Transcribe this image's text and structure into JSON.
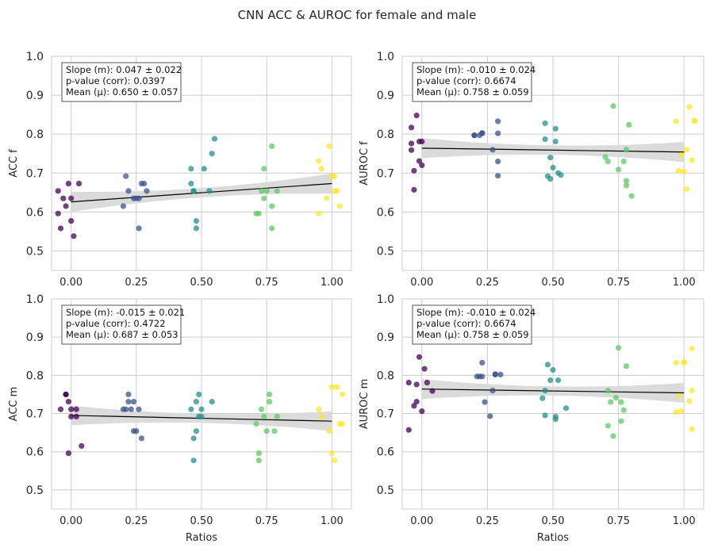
{
  "figure": {
    "title": "CNN ACC & AUROC for female and male"
  },
  "chart_data": [
    {
      "type": "scatter",
      "ylabel": "ACC f",
      "xlabel": "",
      "xlim": [
        -0.075,
        1.075
      ],
      "ylim": [
        0.45,
        1.0
      ],
      "xticks": [
        "0.00",
        "0.25",
        "0.50",
        "0.75",
        "1.00"
      ],
      "yticks": [
        "0.5",
        "0.6",
        "0.7",
        "0.8",
        "0.9",
        "1.0"
      ],
      "grid": true,
      "stats": [
        "Slope (m): 0.047 ± 0.022",
        "p-value (corr): 0.0397",
        "Mean (μ): 0.650 ± 0.057"
      ],
      "regression": {
        "intercept": 0.626,
        "slope": 0.047
      },
      "groups": [
        {
          "ratio": 0.0,
          "color": "#440154",
          "points": [
            [
              -0.05,
              0.654
            ],
            [
              -0.03,
              0.635
            ],
            [
              -0.02,
              0.615
            ],
            [
              -0.01,
              0.673
            ],
            [
              0.0,
              0.577
            ],
            [
              0.01,
              0.538
            ],
            [
              0.03,
              0.673
            ],
            [
              -0.04,
              0.558
            ],
            [
              -0.05,
              0.596
            ],
            [
              0.0,
              0.635
            ]
          ]
        },
        {
          "ratio": 0.25,
          "color": "#3b528b",
          "points": [
            [
              0.2,
              0.615
            ],
            [
              0.21,
              0.692
            ],
            [
              0.22,
              0.654
            ],
            [
              0.24,
              0.635
            ],
            [
              0.25,
              0.635
            ],
            [
              0.26,
              0.558
            ],
            [
              0.27,
              0.673
            ],
            [
              0.28,
              0.673
            ],
            [
              0.29,
              0.654
            ],
            [
              0.26,
              0.635
            ]
          ]
        },
        {
          "ratio": 0.5,
          "color": "#21918c",
          "points": [
            [
              0.46,
              0.711
            ],
            [
              0.46,
              0.673
            ],
            [
              0.47,
              0.654
            ],
            [
              0.48,
              0.577
            ],
            [
              0.48,
              0.558
            ],
            [
              0.47,
              0.654
            ],
            [
              0.51,
              0.711
            ],
            [
              0.53,
              0.654
            ],
            [
              0.54,
              0.75
            ],
            [
              0.55,
              0.788
            ]
          ]
        },
        {
          "ratio": 0.75,
          "color": "#5ec962",
          "points": [
            [
              0.71,
              0.596
            ],
            [
              0.72,
              0.596
            ],
            [
              0.73,
              0.654
            ],
            [
              0.74,
              0.711
            ],
            [
              0.74,
              0.635
            ],
            [
              0.75,
              0.654
            ],
            [
              0.77,
              0.615
            ],
            [
              0.77,
              0.558
            ],
            [
              0.77,
              0.769
            ],
            [
              0.79,
              0.654
            ]
          ]
        },
        {
          "ratio": 1.0,
          "color": "#fde725",
          "points": [
            [
              0.95,
              0.596
            ],
            [
              0.95,
              0.731
            ],
            [
              0.96,
              0.711
            ],
            [
              0.98,
              0.635
            ],
            [
              0.99,
              0.769
            ],
            [
              1.0,
              0.692
            ],
            [
              1.01,
              0.654
            ],
            [
              1.01,
              0.692
            ],
            [
              1.02,
              0.654
            ],
            [
              1.03,
              0.615
            ]
          ]
        }
      ]
    },
    {
      "type": "scatter",
      "ylabel": "AUROC f",
      "xlabel": "",
      "xlim": [
        -0.075,
        1.075
      ],
      "ylim": [
        0.45,
        1.0
      ],
      "xticks": [
        "0.00",
        "0.25",
        "0.50",
        "0.75",
        "1.00"
      ],
      "yticks": [
        "0.5",
        "0.6",
        "0.7",
        "0.8",
        "0.9",
        "1.0"
      ],
      "grid": true,
      "stats": [
        "Slope (m): -0.010 ± 0.024",
        "p-value (corr): 0.6674",
        "Mean (μ): 0.758 ± 0.059"
      ],
      "regression": {
        "intercept": 0.764,
        "slope": -0.01
      },
      "groups": [
        {
          "ratio": 0.0,
          "color": "#440154",
          "points": [
            [
              -0.04,
              0.817
            ],
            [
              -0.04,
              0.776
            ],
            [
              -0.04,
              0.759
            ],
            [
              -0.03,
              0.657
            ],
            [
              -0.03,
              0.706
            ],
            [
              -0.02,
              0.848
            ],
            [
              -0.01,
              0.781
            ],
            [
              -0.01,
              0.731
            ],
            [
              0.0,
              0.781
            ],
            [
              0.0,
              0.72
            ]
          ]
        },
        {
          "ratio": 0.25,
          "color": "#3b528b",
          "points": [
            [
              0.2,
              0.797
            ],
            [
              0.2,
              0.797
            ],
            [
              0.22,
              0.797
            ],
            [
              0.23,
              0.802
            ],
            [
              0.23,
              0.803
            ],
            [
              0.27,
              0.76
            ],
            [
              0.29,
              0.833
            ],
            [
              0.29,
              0.802
            ],
            [
              0.29,
              0.73
            ],
            [
              0.29,
              0.693
            ]
          ]
        },
        {
          "ratio": 0.5,
          "color": "#21918c",
          "points": [
            [
              0.47,
              0.828
            ],
            [
              0.47,
              0.787
            ],
            [
              0.48,
              0.692
            ],
            [
              0.49,
              0.74
            ],
            [
              0.49,
              0.685
            ],
            [
              0.5,
              0.714
            ],
            [
              0.51,
              0.781
            ],
            [
              0.51,
              0.814
            ],
            [
              0.52,
              0.7
            ],
            [
              0.53,
              0.695
            ]
          ]
        },
        {
          "ratio": 0.75,
          "color": "#5ec962",
          "points": [
            [
              0.7,
              0.741
            ],
            [
              0.71,
              0.73
            ],
            [
              0.73,
              0.872
            ],
            [
              0.75,
              0.709
            ],
            [
              0.77,
              0.73
            ],
            [
              0.78,
              0.68
            ],
            [
              0.78,
              0.668
            ],
            [
              0.78,
              0.76
            ],
            [
              0.79,
              0.824
            ],
            [
              0.8,
              0.641
            ]
          ]
        },
        {
          "ratio": 1.0,
          "color": "#fde725",
          "points": [
            [
              0.97,
              0.833
            ],
            [
              0.98,
              0.706
            ],
            [
              0.99,
              0.746
            ],
            [
              1.0,
              0.704
            ],
            [
              1.01,
              0.76
            ],
            [
              1.01,
              0.659
            ],
            [
              1.02,
              0.87
            ],
            [
              1.03,
              0.733
            ],
            [
              1.04,
              0.833
            ],
            [
              1.04,
              0.835
            ]
          ]
        }
      ]
    },
    {
      "type": "scatter",
      "ylabel": "ACC m",
      "xlabel": "Ratios",
      "xlim": [
        -0.075,
        1.075
      ],
      "ylim": [
        0.45,
        1.0
      ],
      "xticks": [
        "0.00",
        "0.25",
        "0.50",
        "0.75",
        "1.00"
      ],
      "yticks": [
        "0.5",
        "0.6",
        "0.7",
        "0.8",
        "0.9",
        "1.0"
      ],
      "grid": true,
      "stats": [
        "Slope (m): -0.015 ± 0.021",
        "p-value (corr): 0.4722",
        "Mean (μ): 0.687 ± 0.053"
      ],
      "regression": {
        "intercept": 0.695,
        "slope": -0.015
      },
      "groups": [
        {
          "ratio": 0.0,
          "color": "#440154",
          "points": [
            [
              -0.04,
              0.711
            ],
            [
              -0.02,
              0.75
            ],
            [
              -0.02,
              0.75
            ],
            [
              -0.01,
              0.731
            ],
            [
              -0.01,
              0.596
            ],
            [
              0.0,
              0.711
            ],
            [
              0.0,
              0.692
            ],
            [
              0.02,
              0.711
            ],
            [
              0.02,
              0.692
            ],
            [
              0.04,
              0.615
            ]
          ]
        },
        {
          "ratio": 0.25,
          "color": "#3b528b",
          "points": [
            [
              0.2,
              0.711
            ],
            [
              0.21,
              0.711
            ],
            [
              0.22,
              0.75
            ],
            [
              0.22,
              0.731
            ],
            [
              0.23,
              0.711
            ],
            [
              0.24,
              0.654
            ],
            [
              0.24,
              0.731
            ],
            [
              0.25,
              0.654
            ],
            [
              0.26,
              0.711
            ],
            [
              0.27,
              0.635
            ]
          ]
        },
        {
          "ratio": 0.5,
          "color": "#21918c",
          "points": [
            [
              0.46,
              0.711
            ],
            [
              0.47,
              0.577
            ],
            [
              0.47,
              0.635
            ],
            [
              0.48,
              0.654
            ],
            [
              0.48,
              0.731
            ],
            [
              0.49,
              0.75
            ],
            [
              0.49,
              0.692
            ],
            [
              0.5,
              0.692
            ],
            [
              0.5,
              0.711
            ],
            [
              0.54,
              0.731
            ]
          ]
        },
        {
          "ratio": 0.75,
          "color": "#5ec962",
          "points": [
            [
              0.71,
              0.673
            ],
            [
              0.72,
              0.577
            ],
            [
              0.72,
              0.596
            ],
            [
              0.73,
              0.711
            ],
            [
              0.74,
              0.692
            ],
            [
              0.75,
              0.654
            ],
            [
              0.76,
              0.731
            ],
            [
              0.76,
              0.75
            ],
            [
              0.78,
              0.654
            ],
            [
              0.79,
              0.692
            ]
          ]
        },
        {
          "ratio": 1.0,
          "color": "#fde725",
          "points": [
            [
              0.95,
              0.711
            ],
            [
              0.96,
              0.692
            ],
            [
              0.99,
              0.654
            ],
            [
              1.0,
              0.769
            ],
            [
              1.0,
              0.596
            ],
            [
              1.01,
              0.577
            ],
            [
              1.02,
              0.769
            ],
            [
              1.03,
              0.673
            ],
            [
              1.04,
              0.673
            ],
            [
              1.04,
              0.75
            ]
          ]
        }
      ]
    },
    {
      "type": "scatter",
      "ylabel": "AUROC m",
      "xlabel": "Ratios",
      "xlim": [
        -0.075,
        1.075
      ],
      "ylim": [
        0.45,
        1.0
      ],
      "xticks": [
        "0.00",
        "0.25",
        "0.50",
        "0.75",
        "1.00"
      ],
      "yticks": [
        "0.5",
        "0.6",
        "0.7",
        "0.8",
        "0.9",
        "1.0"
      ],
      "grid": true,
      "stats": [
        "Slope (m): -0.010 ± 0.024",
        "p-value (corr): 0.6674",
        "Mean (μ): 0.758 ± 0.059"
      ],
      "regression": {
        "intercept": 0.764,
        "slope": -0.01
      },
      "groups": [
        {
          "ratio": 0.0,
          "color": "#440154",
          "points": [
            [
              -0.05,
              0.781
            ],
            [
              -0.05,
              0.657
            ],
            [
              -0.03,
              0.72
            ],
            [
              -0.02,
              0.776
            ],
            [
              -0.02,
              0.731
            ],
            [
              -0.01,
              0.848
            ],
            [
              0.0,
              0.706
            ],
            [
              0.01,
              0.817
            ],
            [
              0.02,
              0.781
            ],
            [
              0.04,
              0.759
            ]
          ]
        },
        {
          "ratio": 0.25,
          "color": "#3b528b",
          "points": [
            [
              0.21,
              0.797
            ],
            [
              0.22,
              0.797
            ],
            [
              0.23,
              0.797
            ],
            [
              0.23,
              0.833
            ],
            [
              0.24,
              0.73
            ],
            [
              0.26,
              0.693
            ],
            [
              0.27,
              0.76
            ],
            [
              0.28,
              0.803
            ],
            [
              0.28,
              0.802
            ],
            [
              0.3,
              0.802
            ]
          ]
        },
        {
          "ratio": 0.5,
          "color": "#21918c",
          "points": [
            [
              0.46,
              0.74
            ],
            [
              0.47,
              0.76
            ],
            [
              0.47,
              0.695
            ],
            [
              0.48,
              0.828
            ],
            [
              0.49,
              0.787
            ],
            [
              0.5,
              0.814
            ],
            [
              0.51,
              0.692
            ],
            [
              0.51,
              0.685
            ],
            [
              0.52,
              0.787
            ],
            [
              0.55,
              0.714
            ]
          ]
        },
        {
          "ratio": 0.75,
          "color": "#5ec962",
          "points": [
            [
              0.71,
              0.668
            ],
            [
              0.71,
              0.76
            ],
            [
              0.72,
              0.73
            ],
            [
              0.73,
              0.641
            ],
            [
              0.74,
              0.741
            ],
            [
              0.75,
              0.872
            ],
            [
              0.76,
              0.68
            ],
            [
              0.76,
              0.73
            ],
            [
              0.77,
              0.709
            ],
            [
              0.78,
              0.824
            ]
          ]
        },
        {
          "ratio": 1.0,
          "color": "#fde725",
          "points": [
            [
              0.97,
              0.833
            ],
            [
              0.97,
              0.704
            ],
            [
              0.98,
              0.746
            ],
            [
              0.99,
              0.706
            ],
            [
              1.0,
              0.833
            ],
            [
              1.0,
              0.835
            ],
            [
              1.02,
              0.733
            ],
            [
              1.03,
              0.87
            ],
            [
              1.03,
              0.659
            ],
            [
              1.03,
              0.76
            ]
          ]
        }
      ]
    }
  ],
  "colors": {
    "grid": "#cccccc",
    "ci_band": "#d9d9d9",
    "regression_line": "#000000",
    "text": "#262626"
  }
}
